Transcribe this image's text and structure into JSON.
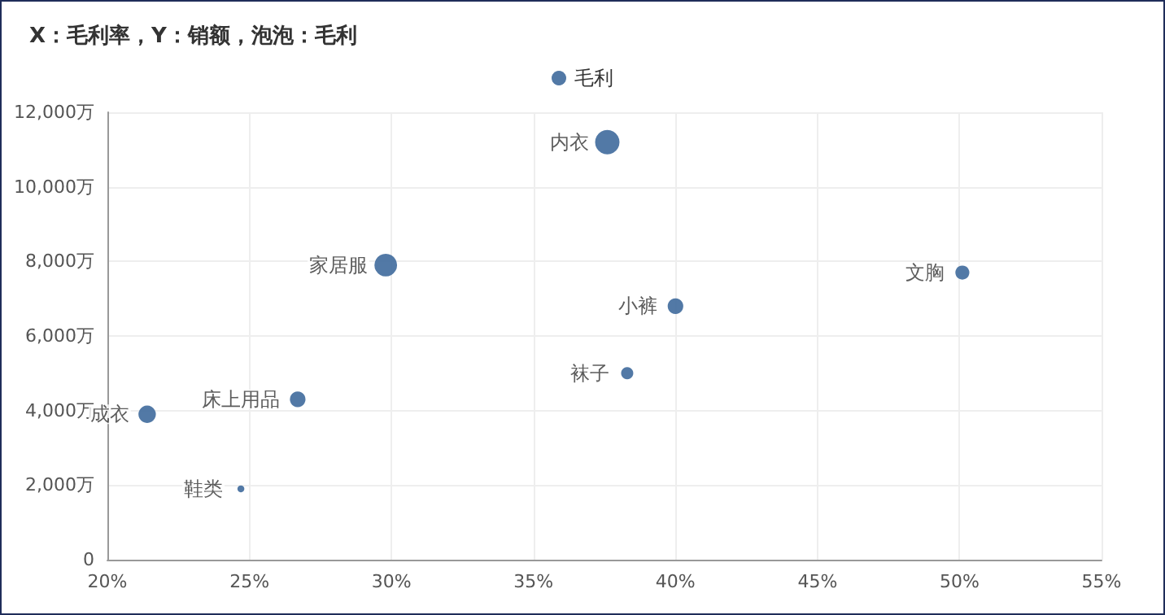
{
  "chart_data": {
    "type": "bubble",
    "title": "X：毛利率，Y：销额，泡泡：毛利",
    "series": [
      {
        "name": "毛利",
        "color": "#3f6a9c",
        "x": [
          37.6,
          29.8,
          50.1,
          40.0,
          38.3,
          26.7,
          21.4,
          24.7
        ],
        "values": [
          11200,
          7900,
          7700,
          6800,
          5000,
          4300,
          3900,
          1900
        ],
        "sizes": [
          1,
          0.86,
          0.33,
          0.41,
          0.25,
          0.41,
          0.51,
          0.08
        ]
      }
    ],
    "annotations": [
      {
        "text": "内衣",
        "x": 37.6,
        "y": 11200
      },
      {
        "text": "家居服",
        "x": 29.8,
        "y": 7900
      },
      {
        "text": "文胸",
        "x": 50.1,
        "y": 7700
      },
      {
        "text": "小裤",
        "x": 40.0,
        "y": 6800
      },
      {
        "text": "袜子",
        "x": 38.3,
        "y": 5000
      },
      {
        "text": "床上用品",
        "x": 26.7,
        "y": 4300
      },
      {
        "text": "成衣",
        "x": 21.4,
        "y": 3900
      },
      {
        "text": "鞋类",
        "x": 24.7,
        "y": 1900
      }
    ],
    "xlim": [
      20,
      55
    ],
    "xticks": [
      {
        "value": 20,
        "label": "20%"
      },
      {
        "value": 25,
        "label": "25%"
      },
      {
        "value": 30,
        "label": "30%"
      },
      {
        "value": 35,
        "label": "35%"
      },
      {
        "value": 40,
        "label": "40%"
      },
      {
        "value": 45,
        "label": "45%"
      },
      {
        "value": 50,
        "label": "50%"
      },
      {
        "value": 55,
        "label": "55%"
      }
    ],
    "ylim": [
      0,
      12000
    ],
    "yticks": [
      {
        "value": 0,
        "label": "0"
      },
      {
        "value": 2000,
        "label": "2,000万"
      },
      {
        "value": 4000,
        "label": "4,000万"
      },
      {
        "value": 6000,
        "label": "6,000万"
      },
      {
        "value": 8000,
        "label": "8,000万"
      },
      {
        "value": 10000,
        "label": "10,000万"
      },
      {
        "value": 12000,
        "label": "12,000万"
      }
    ],
    "grid": true,
    "legend": "top",
    "marker": "circle"
  }
}
